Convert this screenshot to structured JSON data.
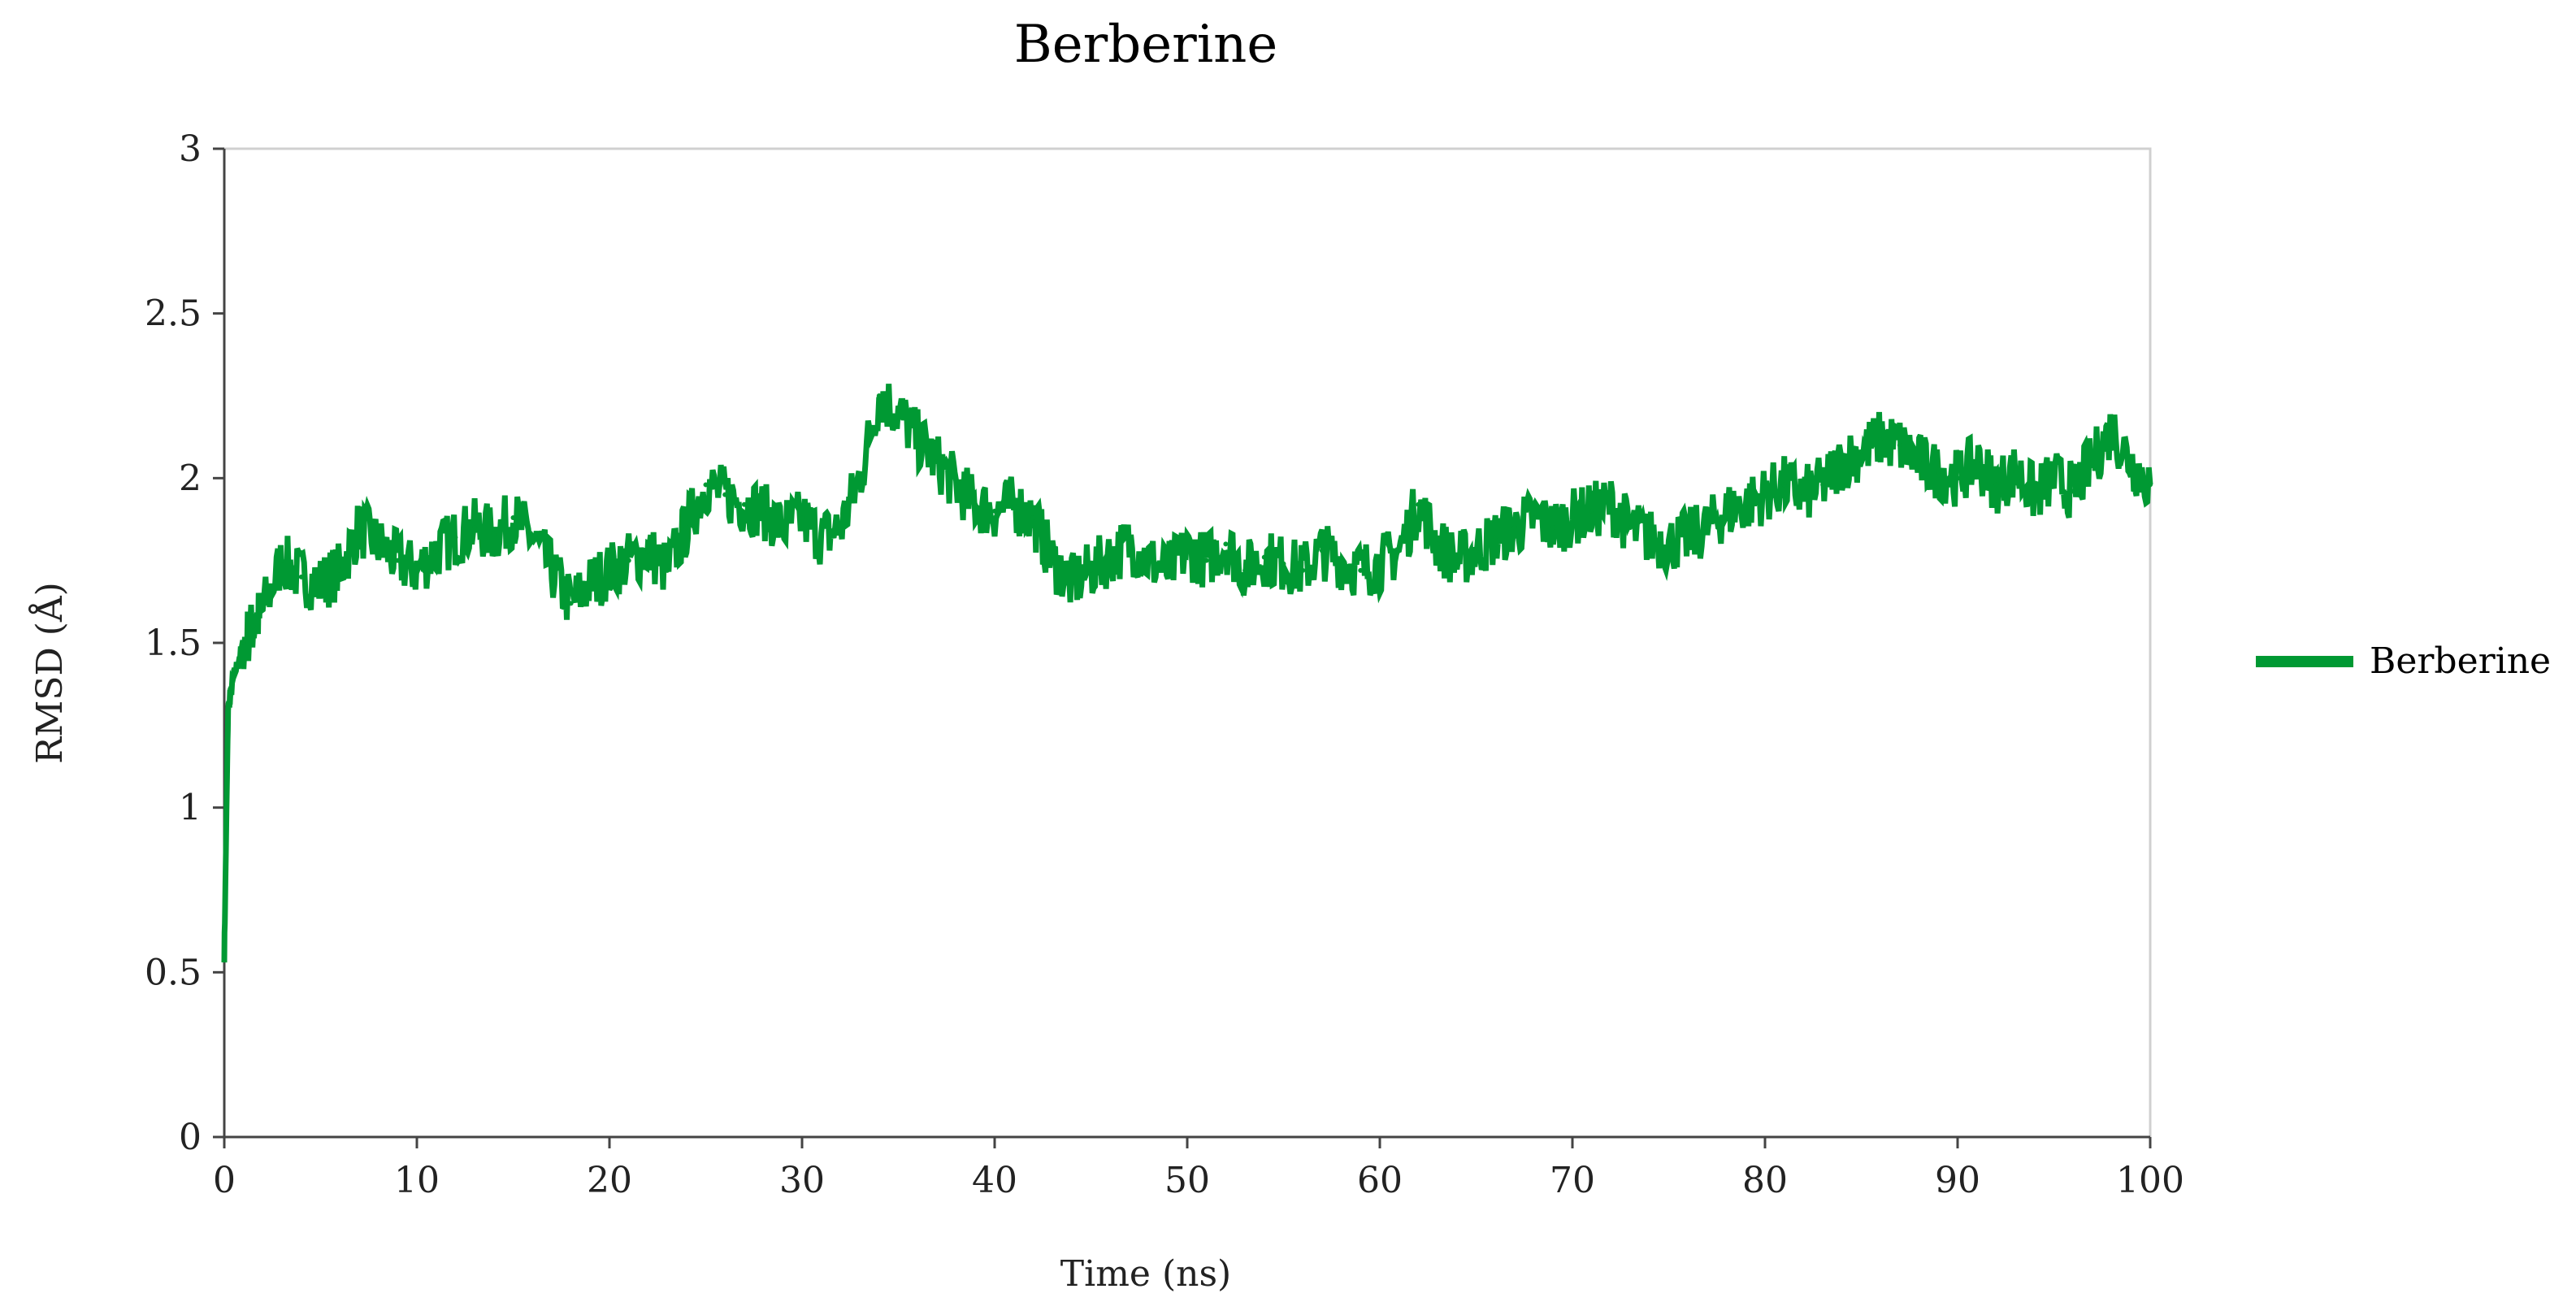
{
  "chart_data": {
    "type": "line",
    "title": "Berberine",
    "xlabel": "Time (ns)",
    "ylabel": "RMSD (Å)",
    "xlim": [
      0,
      100
    ],
    "ylim": [
      0,
      3
    ],
    "x_ticks": [
      "0",
      "10",
      "20",
      "30",
      "40",
      "50",
      "60",
      "70",
      "80",
      "90",
      "100"
    ],
    "y_ticks": [
      "0",
      "0.5",
      "1",
      "1.5",
      "2",
      "2.5",
      "3"
    ],
    "grid": false,
    "legend_position": "right",
    "series": [
      {
        "name": "Berberine",
        "color": "#009933",
        "x": [
          0,
          0.2,
          0.5,
          1,
          1.5,
          2,
          3,
          4,
          5,
          6,
          7,
          8,
          9,
          10,
          11,
          12,
          13,
          14,
          15,
          16,
          17,
          18,
          19,
          20,
          21,
          22,
          23,
          24,
          25,
          26,
          27,
          28,
          29,
          30,
          31,
          32,
          33,
          34,
          35,
          36,
          37,
          38,
          39,
          40,
          41,
          42,
          43,
          44,
          45,
          46,
          47,
          48,
          49,
          50,
          51,
          52,
          53,
          54,
          55,
          56,
          57,
          58,
          59,
          60,
          61,
          62,
          63,
          64,
          65,
          66,
          67,
          68,
          69,
          70,
          71,
          72,
          73,
          74,
          75,
          76,
          77,
          78,
          79,
          80,
          81,
          82,
          83,
          84,
          85,
          86,
          87,
          88,
          89,
          90,
          91,
          92,
          93,
          94,
          95,
          96,
          97,
          98,
          99,
          100
        ],
        "y": [
          0.55,
          1.3,
          1.4,
          1.5,
          1.55,
          1.6,
          1.75,
          1.7,
          1.68,
          1.72,
          1.85,
          1.8,
          1.75,
          1.72,
          1.78,
          1.82,
          1.85,
          1.83,
          1.88,
          1.82,
          1.72,
          1.62,
          1.68,
          1.72,
          1.75,
          1.78,
          1.72,
          1.85,
          1.98,
          1.95,
          1.92,
          1.9,
          1.85,
          1.88,
          1.82,
          1.85,
          2.0,
          2.25,
          2.2,
          2.12,
          2.05,
          1.98,
          1.92,
          1.9,
          1.92,
          1.88,
          1.75,
          1.68,
          1.72,
          1.76,
          1.8,
          1.75,
          1.72,
          1.78,
          1.75,
          1.8,
          1.72,
          1.76,
          1.74,
          1.72,
          1.78,
          1.75,
          1.72,
          1.74,
          1.78,
          1.92,
          1.8,
          1.75,
          1.78,
          1.82,
          1.85,
          1.88,
          1.85,
          1.88,
          1.9,
          1.92,
          1.85,
          1.82,
          1.8,
          1.82,
          1.85,
          1.9,
          1.92,
          1.95,
          1.98,
          1.95,
          1.98,
          2.05,
          2.08,
          2.12,
          2.1,
          2.05,
          2.02,
          2.0,
          2.05,
          1.98,
          2.02,
          1.95,
          2.0,
          1.96,
          2.05,
          2.15,
          2.05,
          1.98
        ]
      }
    ]
  }
}
